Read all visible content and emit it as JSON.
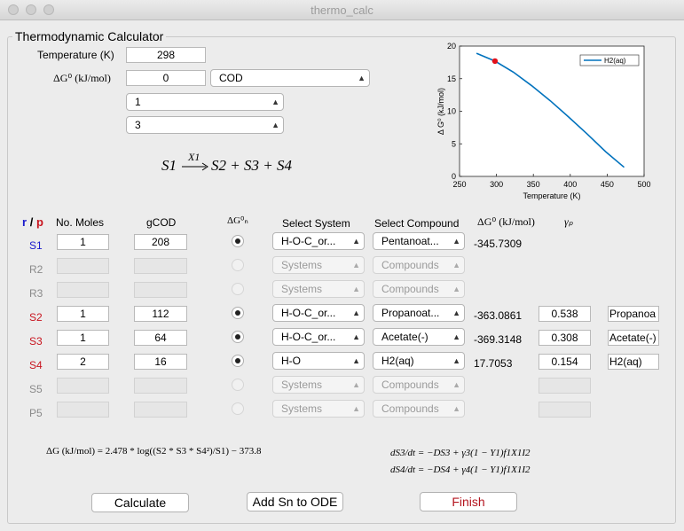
{
  "window": {
    "title": "thermo_calc"
  },
  "panel_title": "Thermodynamic Calculator",
  "top": {
    "temperature_label": "Temperature (K)",
    "temperature_value": "298",
    "dg0_label": "ΔG⁰ (kJ/mol)",
    "dg0_value": "0",
    "unit_select": "COD",
    "select_a": "1",
    "select_b": "3",
    "reaction": "S1 ⟶X1 S2 + S3 + S4",
    "reaction_lhs": "S1",
    "reaction_arrow_label": "X1",
    "reaction_rhs": "S2 + S3 + S4"
  },
  "chart_data": {
    "type": "line",
    "title": "",
    "xlabel": "Temperature (K)",
    "ylabel": "Δ G⁰ (kJ/mol)",
    "xlim": [
      250,
      500
    ],
    "ylim": [
      0,
      20
    ],
    "xticks": [
      "250",
      "300",
      "350",
      "400",
      "450",
      "500"
    ],
    "yticks": [
      "0",
      "5",
      "10",
      "15",
      "20"
    ],
    "legend_position": "top-right",
    "grid": false,
    "series": [
      {
        "name": "H2(aq)",
        "color": "#0072bd",
        "x": [
          273,
          298,
          323,
          348,
          373,
          398,
          423,
          448,
          473
        ],
        "y": [
          18.9,
          17.7,
          16.0,
          13.9,
          11.6,
          9.1,
          6.5,
          3.8,
          1.4
        ]
      }
    ],
    "marker": {
      "x": 298,
      "y": 17.7,
      "color": "#e3101a"
    }
  },
  "headers": {
    "rp_r": "r",
    "rp_sep": "/",
    "rp_p": "p",
    "moles": "No. Moles",
    "gcod": "gCOD",
    "dgn": "ΔG⁰ₙ",
    "system": "Select System",
    "compound": "Select Compound",
    "dg0": "ΔG⁰ (kJ/mol)",
    "gamma": "γₚ"
  },
  "rows": [
    {
      "label": "S1",
      "label_color": "#1a1acc",
      "moles": "1",
      "gcod": "208",
      "enabled": true,
      "radio": true,
      "system": "H-O-C_or...",
      "compound": "Pentanoat...",
      "dg0": "-345.7309",
      "gamma": "",
      "name": ""
    },
    {
      "label": "R2",
      "label_color": "#8a8a8a",
      "moles": "",
      "gcod": "",
      "enabled": false,
      "radio": false,
      "system": "Systems",
      "compound": "Compounds",
      "dg0": "",
      "gamma": "",
      "name": ""
    },
    {
      "label": "R3",
      "label_color": "#8a8a8a",
      "moles": "",
      "gcod": "",
      "enabled": false,
      "radio": false,
      "system": "Systems",
      "compound": "Compounds",
      "dg0": "",
      "gamma": "",
      "name": ""
    },
    {
      "label": "S2",
      "label_color": "#c8141e",
      "moles": "1",
      "gcod": "112",
      "enabled": true,
      "radio": true,
      "system": "H-O-C_or...",
      "compound": "Propanoat...",
      "dg0": "-363.0861",
      "gamma": "0.538",
      "name": "Propanoa"
    },
    {
      "label": "S3",
      "label_color": "#c8141e",
      "moles": "1",
      "gcod": "64",
      "enabled": true,
      "radio": true,
      "system": "H-O-C_or...",
      "compound": "Acetate(-)",
      "dg0": "-369.3148",
      "gamma": "0.308",
      "name": "Acetate(-)"
    },
    {
      "label": "S4",
      "label_color": "#c8141e",
      "moles": "2",
      "gcod": "16",
      "enabled": true,
      "radio": true,
      "system": "H-O",
      "compound": "H2(aq)",
      "dg0": "17.7053",
      "gamma": "0.154",
      "name": "H2(aq)"
    },
    {
      "label": "S5",
      "label_color": "#8a8a8a",
      "moles": "",
      "gcod": "",
      "enabled": false,
      "radio": false,
      "system": "Systems",
      "compound": "Compounds",
      "dg0": "",
      "gamma": "",
      "name": "",
      "gamma_box": true
    },
    {
      "label": "P5",
      "label_color": "#8a8a8a",
      "moles": "",
      "gcod": "",
      "enabled": false,
      "radio": false,
      "system": "Systems",
      "compound": "Compounds",
      "dg0": "",
      "gamma": "",
      "name": "",
      "gamma_box": true
    }
  ],
  "equations": {
    "delta_g": "ΔG (kJ/mol) = 2.478 * log((S2 * S3 * S4²)/S1) − 373.8",
    "ode3_lhs": "dS3/dt",
    "ode3_rhs": "= −DS3 + γ3(1 − Y1)f1X1I2",
    "ode4_lhs": "dS4/dt",
    "ode4_rhs": "= −DS4 + γ4(1 − Y1)f1X1I2"
  },
  "buttons": {
    "calculate": "Calculate",
    "add_sn": "Add Sn to ODE",
    "finish": "Finish",
    "finish_color": "#b4141e"
  }
}
